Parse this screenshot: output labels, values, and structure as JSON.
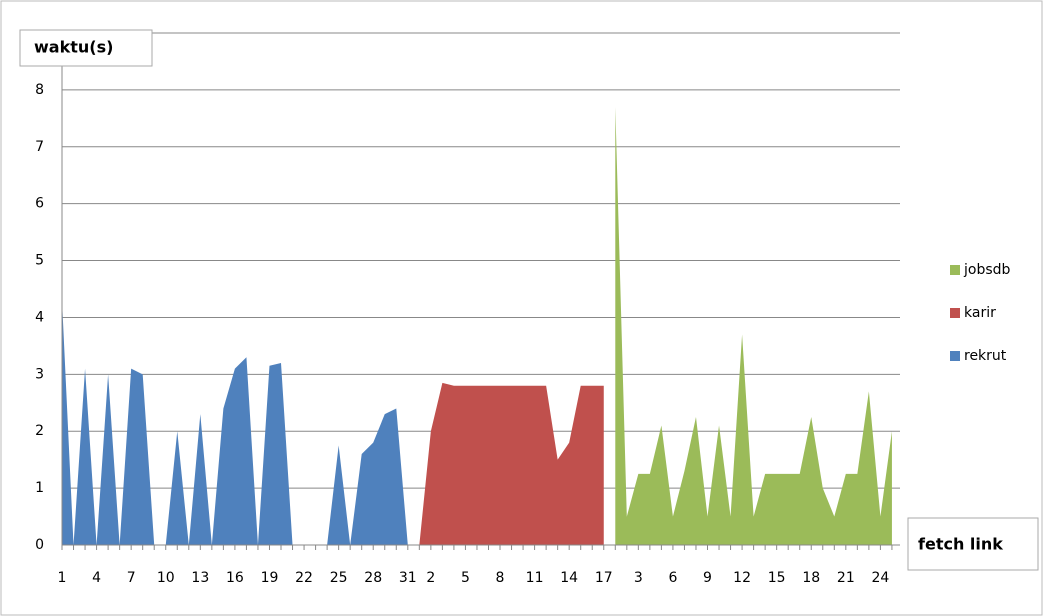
{
  "chart_data": {
    "type": "area",
    "y_axis_title": "waktu(s)",
    "x_axis_title": "fetch link",
    "categories": [
      "1",
      null,
      null,
      "4",
      null,
      null,
      "7",
      null,
      null,
      "10",
      null,
      null,
      "13",
      null,
      null,
      "16",
      null,
      null,
      "19",
      null,
      null,
      "22",
      null,
      null,
      "25",
      null,
      null,
      "28",
      null,
      null,
      "31",
      null,
      "2",
      null,
      null,
      "5",
      null,
      null,
      "8",
      null,
      null,
      "11",
      null,
      null,
      "14",
      null,
      null,
      "17",
      null,
      null,
      "3",
      null,
      null,
      "6",
      null,
      null,
      "9",
      null,
      null,
      "12",
      null,
      null,
      "15",
      null,
      null,
      "18",
      null,
      null,
      "21",
      null,
      null,
      "24",
      null
    ],
    "series": [
      {
        "name": "jobsdb",
        "color": "#9bbb59",
        "values": [
          null,
          null,
          null,
          null,
          null,
          null,
          null,
          null,
          null,
          null,
          null,
          null,
          null,
          null,
          null,
          null,
          null,
          null,
          null,
          null,
          null,
          null,
          null,
          null,
          null,
          null,
          null,
          null,
          null,
          null,
          null,
          null,
          null,
          null,
          null,
          null,
          null,
          null,
          null,
          null,
          null,
          null,
          null,
          null,
          null,
          null,
          null,
          null,
          7.7,
          0.5,
          1.25,
          1.25,
          2.1,
          0.5,
          1.3,
          2.25,
          0.5,
          2.1,
          0.5,
          3.7,
          0.5,
          1.25,
          1.25,
          1.25,
          1.25,
          2.25,
          1.0,
          0.5,
          1.25,
          1.25,
          2.7,
          0.5,
          2.0
        ]
      },
      {
        "name": "karir",
        "color": "#c0504d",
        "values": [
          null,
          null,
          null,
          null,
          null,
          null,
          null,
          null,
          null,
          null,
          null,
          null,
          null,
          null,
          null,
          null,
          null,
          null,
          null,
          null,
          null,
          null,
          null,
          null,
          null,
          null,
          null,
          null,
          null,
          null,
          null,
          0,
          2.0,
          2.85,
          2.8,
          2.8,
          2.8,
          2.8,
          2.8,
          2.8,
          2.8,
          2.8,
          2.8,
          1.5,
          1.8,
          2.8,
          2.8,
          2.8,
          null,
          null,
          null,
          null,
          null,
          null,
          null,
          null,
          null,
          null,
          null,
          null,
          null,
          null,
          null,
          null,
          null,
          null,
          null,
          null,
          null,
          null,
          null,
          null,
          null
        ]
      },
      {
        "name": "rekrut",
        "color": "#4f81bd",
        "values": [
          4.3,
          0,
          3.1,
          0,
          3.0,
          0,
          3.1,
          3.0,
          0,
          0,
          2.0,
          0,
          2.3,
          0,
          2.4,
          3.1,
          3.3,
          0,
          3.15,
          3.2,
          0,
          0,
          0,
          0,
          1.75,
          0,
          1.6,
          1.8,
          2.3,
          2.4,
          0,
          null,
          null,
          null,
          null,
          null,
          null,
          null,
          null,
          null,
          null,
          null,
          null,
          null,
          null,
          null,
          null,
          null,
          null,
          null,
          null,
          null,
          null,
          null,
          null,
          null,
          null,
          null,
          null,
          null,
          null,
          null,
          null,
          null,
          null,
          null,
          null,
          null,
          null,
          null,
          null,
          null,
          null
        ]
      }
    ],
    "ylim": [
      0,
      9
    ],
    "yticks": [
      0,
      1,
      2,
      3,
      4,
      5,
      6,
      7,
      8
    ],
    "grid": true
  }
}
